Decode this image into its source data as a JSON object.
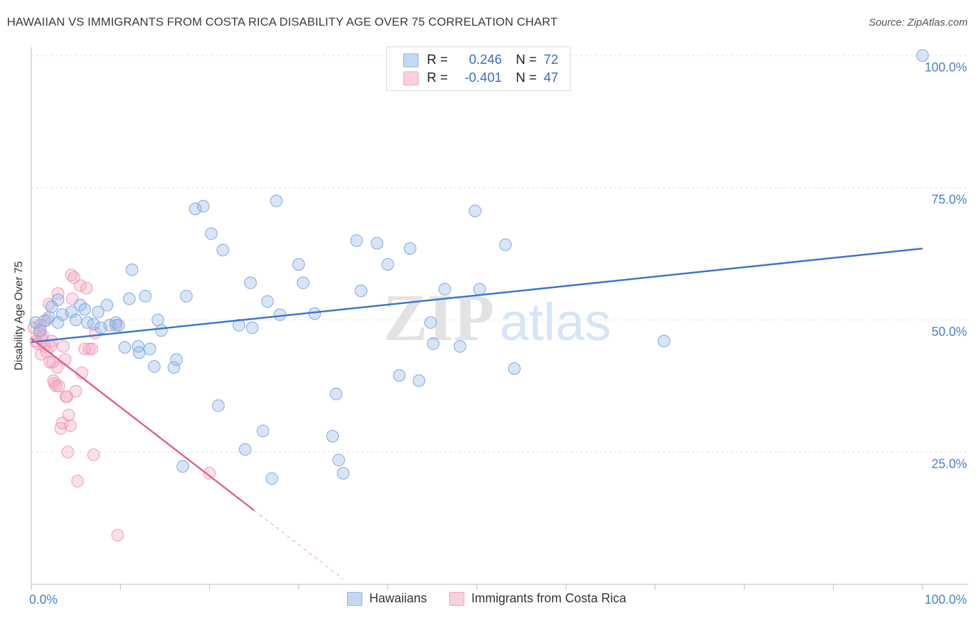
{
  "header": {
    "title": "HAWAIIAN VS IMMIGRANTS FROM COSTA RICA DISABILITY AGE OVER 75 CORRELATION CHART",
    "source": "Source: ZipAtlas.com"
  },
  "watermark": {
    "zip": "ZIP",
    "atlas": "atlas"
  },
  "legend": {
    "rows": [
      {
        "r_label": "R =",
        "r_value": "0.246",
        "n_label": "N =",
        "n_value": "72",
        "color": "#8fb4e8"
      },
      {
        "r_label": "R =",
        "r_value": "-0.401",
        "n_label": "N =",
        "n_value": "47",
        "color": "#f2a7bf"
      }
    ]
  },
  "bottom_legend": {
    "items": [
      {
        "label": "Hawaiians",
        "color": "#8fb4e8"
      },
      {
        "label": "Immigrants from Costa Rica",
        "color": "#f2a7bf"
      }
    ]
  },
  "chart_data": {
    "type": "scatter",
    "title": "HAWAIIAN VS IMMIGRANTS FROM COSTA RICA DISABILITY AGE OVER 75 CORRELATION CHART",
    "xlabel": "",
    "ylabel": "Disability Age Over 75",
    "xlim": [
      0,
      100
    ],
    "ylim": [
      0,
      100
    ],
    "x_tick_labels": [
      "0.0%",
      "100.0%"
    ],
    "y_tick_labels": [
      "25.0%",
      "50.0%",
      "75.0%",
      "100.0%"
    ],
    "y_ticks": [
      25,
      50,
      75,
      100
    ],
    "grid": true,
    "legend_position": "top-center",
    "colors": {
      "hawaiians": "#3a76d0",
      "costa_rica": "#e0608e"
    },
    "series": [
      {
        "name": "Hawaiians",
        "trend": {
          "x": [
            0,
            100
          ],
          "y": [
            45.8,
            63.5
          ]
        },
        "points": [
          [
            0.5,
            49.5
          ],
          [
            1.0,
            48.0
          ],
          [
            1.5,
            49.8
          ],
          [
            2.0,
            50.5
          ],
          [
            2.3,
            52.5
          ],
          [
            3.0,
            53.8
          ],
          [
            3.5,
            51.0
          ],
          [
            3.0,
            49.5
          ],
          [
            4.5,
            51.5
          ],
          [
            5.0,
            50.0
          ],
          [
            5.5,
            52.8
          ],
          [
            6.0,
            52.0
          ],
          [
            6.3,
            49.5
          ],
          [
            7.0,
            49.2
          ],
          [
            7.5,
            51.5
          ],
          [
            7.8,
            48.5
          ],
          [
            8.5,
            52.8
          ],
          [
            8.8,
            49.0
          ],
          [
            9.5,
            49.5
          ],
          [
            9.8,
            49.0
          ],
          [
            10.5,
            44.8
          ],
          [
            11.0,
            54.0
          ],
          [
            11.3,
            59.5
          ],
          [
            12.0,
            45.0
          ],
          [
            12.1,
            43.8
          ],
          [
            12.8,
            54.5
          ],
          [
            13.3,
            44.5
          ],
          [
            13.8,
            41.2
          ],
          [
            14.2,
            50.0
          ],
          [
            14.6,
            48.0
          ],
          [
            16.0,
            41.0
          ],
          [
            16.3,
            42.5
          ],
          [
            17.0,
            22.3
          ],
          [
            17.4,
            54.5
          ],
          [
            18.4,
            71.0
          ],
          [
            19.3,
            71.5
          ],
          [
            20.2,
            66.3
          ],
          [
            21.0,
            33.8
          ],
          [
            21.5,
            63.2
          ],
          [
            23.3,
            49.0
          ],
          [
            24.0,
            25.5
          ],
          [
            24.6,
            57.0
          ],
          [
            24.8,
            48.5
          ],
          [
            26.0,
            29.0
          ],
          [
            26.5,
            53.5
          ],
          [
            27.0,
            20.0
          ],
          [
            27.5,
            72.5
          ],
          [
            27.9,
            51.0
          ],
          [
            30.0,
            60.5
          ],
          [
            30.5,
            57.0
          ],
          [
            31.8,
            51.2
          ],
          [
            33.8,
            28.0
          ],
          [
            34.2,
            36.0
          ],
          [
            34.5,
            23.5
          ],
          [
            35.0,
            21.0
          ],
          [
            36.5,
            65.0
          ],
          [
            37.0,
            55.5
          ],
          [
            38.8,
            64.5
          ],
          [
            40.0,
            60.5
          ],
          [
            41.3,
            39.5
          ],
          [
            42.5,
            63.5
          ],
          [
            43.5,
            38.5
          ],
          [
            44.8,
            49.5
          ],
          [
            45.1,
            45.5
          ],
          [
            46.4,
            55.8
          ],
          [
            48.1,
            45.0
          ],
          [
            49.8,
            70.6
          ],
          [
            50.3,
            55.8
          ],
          [
            53.2,
            64.2
          ],
          [
            54.2,
            40.8
          ],
          [
            71.0,
            46.0
          ],
          [
            100.0,
            100.0
          ]
        ]
      },
      {
        "name": "Immigrants from Costa Rica",
        "trend": {
          "x": [
            0,
            25
          ],
          "y": [
            46.5,
            14.0
          ]
        },
        "trend_dashed": {
          "x": [
            25,
            35
          ],
          "y": [
            14.0,
            1.0
          ]
        },
        "points": [
          [
            0.3,
            48.5
          ],
          [
            0.5,
            46.0
          ],
          [
            0.7,
            45.5
          ],
          [
            0.9,
            47.5
          ],
          [
            1.0,
            49.0
          ],
          [
            1.2,
            46.5
          ],
          [
            1.3,
            47.0
          ],
          [
            1.5,
            45.0
          ],
          [
            1.7,
            44.0
          ],
          [
            1.8,
            50.0
          ],
          [
            2.0,
            53.0
          ],
          [
            2.1,
            42.0
          ],
          [
            2.2,
            45.0
          ],
          [
            2.3,
            46.0
          ],
          [
            2.4,
            42.0
          ],
          [
            2.5,
            38.5
          ],
          [
            2.6,
            38.0
          ],
          [
            2.8,
            37.5
          ],
          [
            2.9,
            41.0
          ],
          [
            3.0,
            55.0
          ],
          [
            3.1,
            37.5
          ],
          [
            3.3,
            29.5
          ],
          [
            3.5,
            30.5
          ],
          [
            3.6,
            45.0
          ],
          [
            3.8,
            42.5
          ],
          [
            3.9,
            35.5
          ],
          [
            4.0,
            35.5
          ],
          [
            4.1,
            25.0
          ],
          [
            4.2,
            32.0
          ],
          [
            4.4,
            30.0
          ],
          [
            4.5,
            58.5
          ],
          [
            4.6,
            54.0
          ],
          [
            4.8,
            58.0
          ],
          [
            5.0,
            36.5
          ],
          [
            5.2,
            19.5
          ],
          [
            5.5,
            56.5
          ],
          [
            5.7,
            40.0
          ],
          [
            6.0,
            44.5
          ],
          [
            6.2,
            56.0
          ],
          [
            6.5,
            44.5
          ],
          [
            6.8,
            44.5
          ],
          [
            7.0,
            24.5
          ],
          [
            7.2,
            47.5
          ],
          [
            9.5,
            49.0
          ],
          [
            9.7,
            9.3
          ],
          [
            20.0,
            21.0
          ],
          [
            1.1,
            43.5
          ]
        ]
      }
    ]
  }
}
